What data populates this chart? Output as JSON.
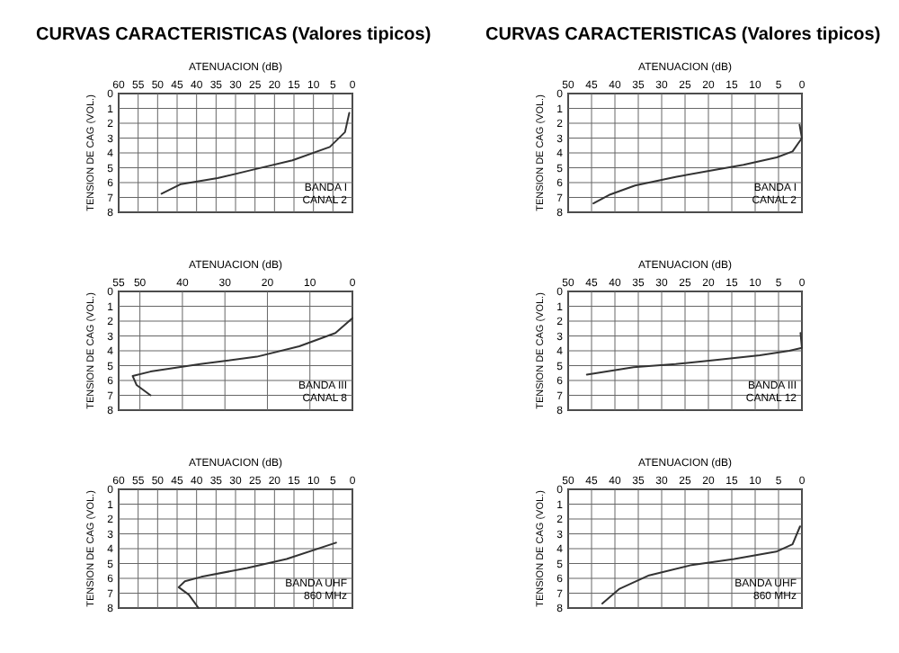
{
  "chart_data": [
    {
      "type": "line",
      "title": "CURVAS CARACTERISTICAS (Valores tipicos)",
      "xlabel": "ATENUACION (dB)",
      "ylabel": "TENSION DE CAG (VOL.)",
      "annotations": [
        "BANDA I CANAL 2"
      ],
      "ylim": [
        8,
        0
      ],
      "yticks": [
        0,
        1,
        2,
        3,
        4,
        5,
        6,
        7,
        8
      ],
      "xlim": [
        50,
        0
      ],
      "xticks": [
        0,
        5,
        10,
        15,
        20,
        25,
        30,
        35,
        40,
        45,
        50
      ],
      "grid": true,
      "series": [
        {
          "color": "#333333",
          "values": [
            2.1,
            3,
            3.9,
            4.3,
            4.8,
            5.2,
            5.6,
            6.2,
            6.8,
            7.4
          ],
          "x": [
            0.5,
            0,
            2,
            5.4,
            12.5,
            19.6,
            26.8,
            35.7,
            41,
            44.6
          ]
        }
      ]
    },
    {
      "type": "line",
      "xlabel": "ATENUACION (dB)",
      "ylabel": "TENSION DE CAG (VOL.)",
      "annotations": [
        "BANDA III CANAL 12"
      ],
      "ylim": [
        8,
        0
      ],
      "yticks": [
        0,
        1,
        2,
        3,
        4,
        5,
        6,
        7,
        8
      ],
      "xlim": [
        50,
        0
      ],
      "xticks": [
        0,
        5,
        10,
        15,
        20,
        25,
        30,
        35,
        40,
        45,
        50
      ],
      "grid": true,
      "series": [
        {
          "color": "#333333",
          "values": [
            2.8,
            3.8,
            4,
            4.3,
            4.6,
            4.9,
            5.1,
            5.6
          ],
          "x": [
            0.3,
            0,
            2.7,
            9,
            18,
            27,
            36,
            46
          ]
        }
      ]
    },
    {
      "type": "line",
      "xlabel": "ATENUACION (dB)",
      "ylabel": "TENSION DE CAG (VOL.)",
      "annotations": [
        "BANDA UHF 860 MHz"
      ],
      "ylim": [
        8,
        0
      ],
      "yticks": [
        0,
        1,
        2,
        3,
        4,
        5,
        6,
        7,
        8
      ],
      "xlim": [
        50,
        0
      ],
      "xticks": [
        0,
        5,
        10,
        15,
        20,
        25,
        30,
        35,
        40,
        45,
        50
      ],
      "grid": true,
      "series": [
        {
          "color": "#333333",
          "values": [
            2.5,
            3.7,
            4.2,
            4.7,
            5.1,
            5.8,
            6.7,
            7.7
          ],
          "x": [
            0.4,
            2,
            5.5,
            14.5,
            23.6,
            32.7,
            39,
            42.7
          ]
        }
      ]
    },
    {
      "type": "line",
      "title": "CURVAS CARACTERISTICAS (Valores tipicos)",
      "xlabel": "ATENUACION (dB)",
      "ylabel": "TENSION DE CAG (VOL.)",
      "annotations": [
        "BANDA I CANAL 2"
      ],
      "ylim": [
        8,
        0
      ],
      "yticks": [
        0,
        1,
        2,
        3,
        4,
        5,
        6,
        7,
        8
      ],
      "xlim": [
        60,
        0
      ],
      "xticks": [
        0,
        5,
        10,
        15,
        20,
        25,
        30,
        35,
        40,
        45,
        50,
        55,
        60
      ],
      "grid": true,
      "series": [
        {
          "color": "#333333",
          "values": [
            1.3,
            2.6,
            3.6,
            4.5,
            5.1,
            5.7,
            6.1,
            6.75
          ],
          "x": [
            0.8,
            1.9,
            5.8,
            15.4,
            25,
            34.6,
            44,
            49
          ]
        }
      ]
    },
    {
      "type": "line",
      "xlabel": "ATENUACION (dB)",
      "ylabel": "TENSION DE CAG (VOL.)",
      "annotations": [
        "BANDA III CANAL 8"
      ],
      "ylim": [
        8,
        0
      ],
      "yticks": [
        0,
        1,
        2,
        3,
        4,
        5,
        6,
        7,
        8
      ],
      "xlim": [
        55,
        0
      ],
      "xticks": [
        0,
        10,
        20,
        30,
        40,
        50,
        55
      ],
      "grid": true,
      "series": [
        {
          "color": "#333333",
          "values": [
            1.8,
            2.8,
            3.7,
            4.4,
            4.9,
            5.4,
            5.7,
            6.3,
            7
          ],
          "x": [
            0,
            4,
            12.5,
            22.5,
            35.8,
            47.5,
            51.7,
            50.8,
            47.5
          ]
        }
      ]
    },
    {
      "type": "line",
      "xlabel": "ATENUACION (dB)",
      "ylabel": "TENSION DE CAG (VOL.)",
      "annotations": [
        "BANDA UHF 860 MHz"
      ],
      "ylim": [
        8,
        0
      ],
      "yticks": [
        0,
        1,
        2,
        3,
        4,
        5,
        6,
        7,
        8
      ],
      "xlim": [
        60,
        0
      ],
      "xticks": [
        0,
        5,
        10,
        15,
        20,
        25,
        30,
        35,
        40,
        45,
        50,
        55,
        60
      ],
      "grid": true,
      "series": [
        {
          "color": "#333333",
          "values": [
            3.6,
            4.7,
            5.3,
            5.9,
            6.2,
            6.6,
            7.1,
            8
          ],
          "x": [
            4.2,
            16.9,
            27,
            38.8,
            43,
            44.6,
            42,
            39.5
          ]
        }
      ]
    }
  ]
}
